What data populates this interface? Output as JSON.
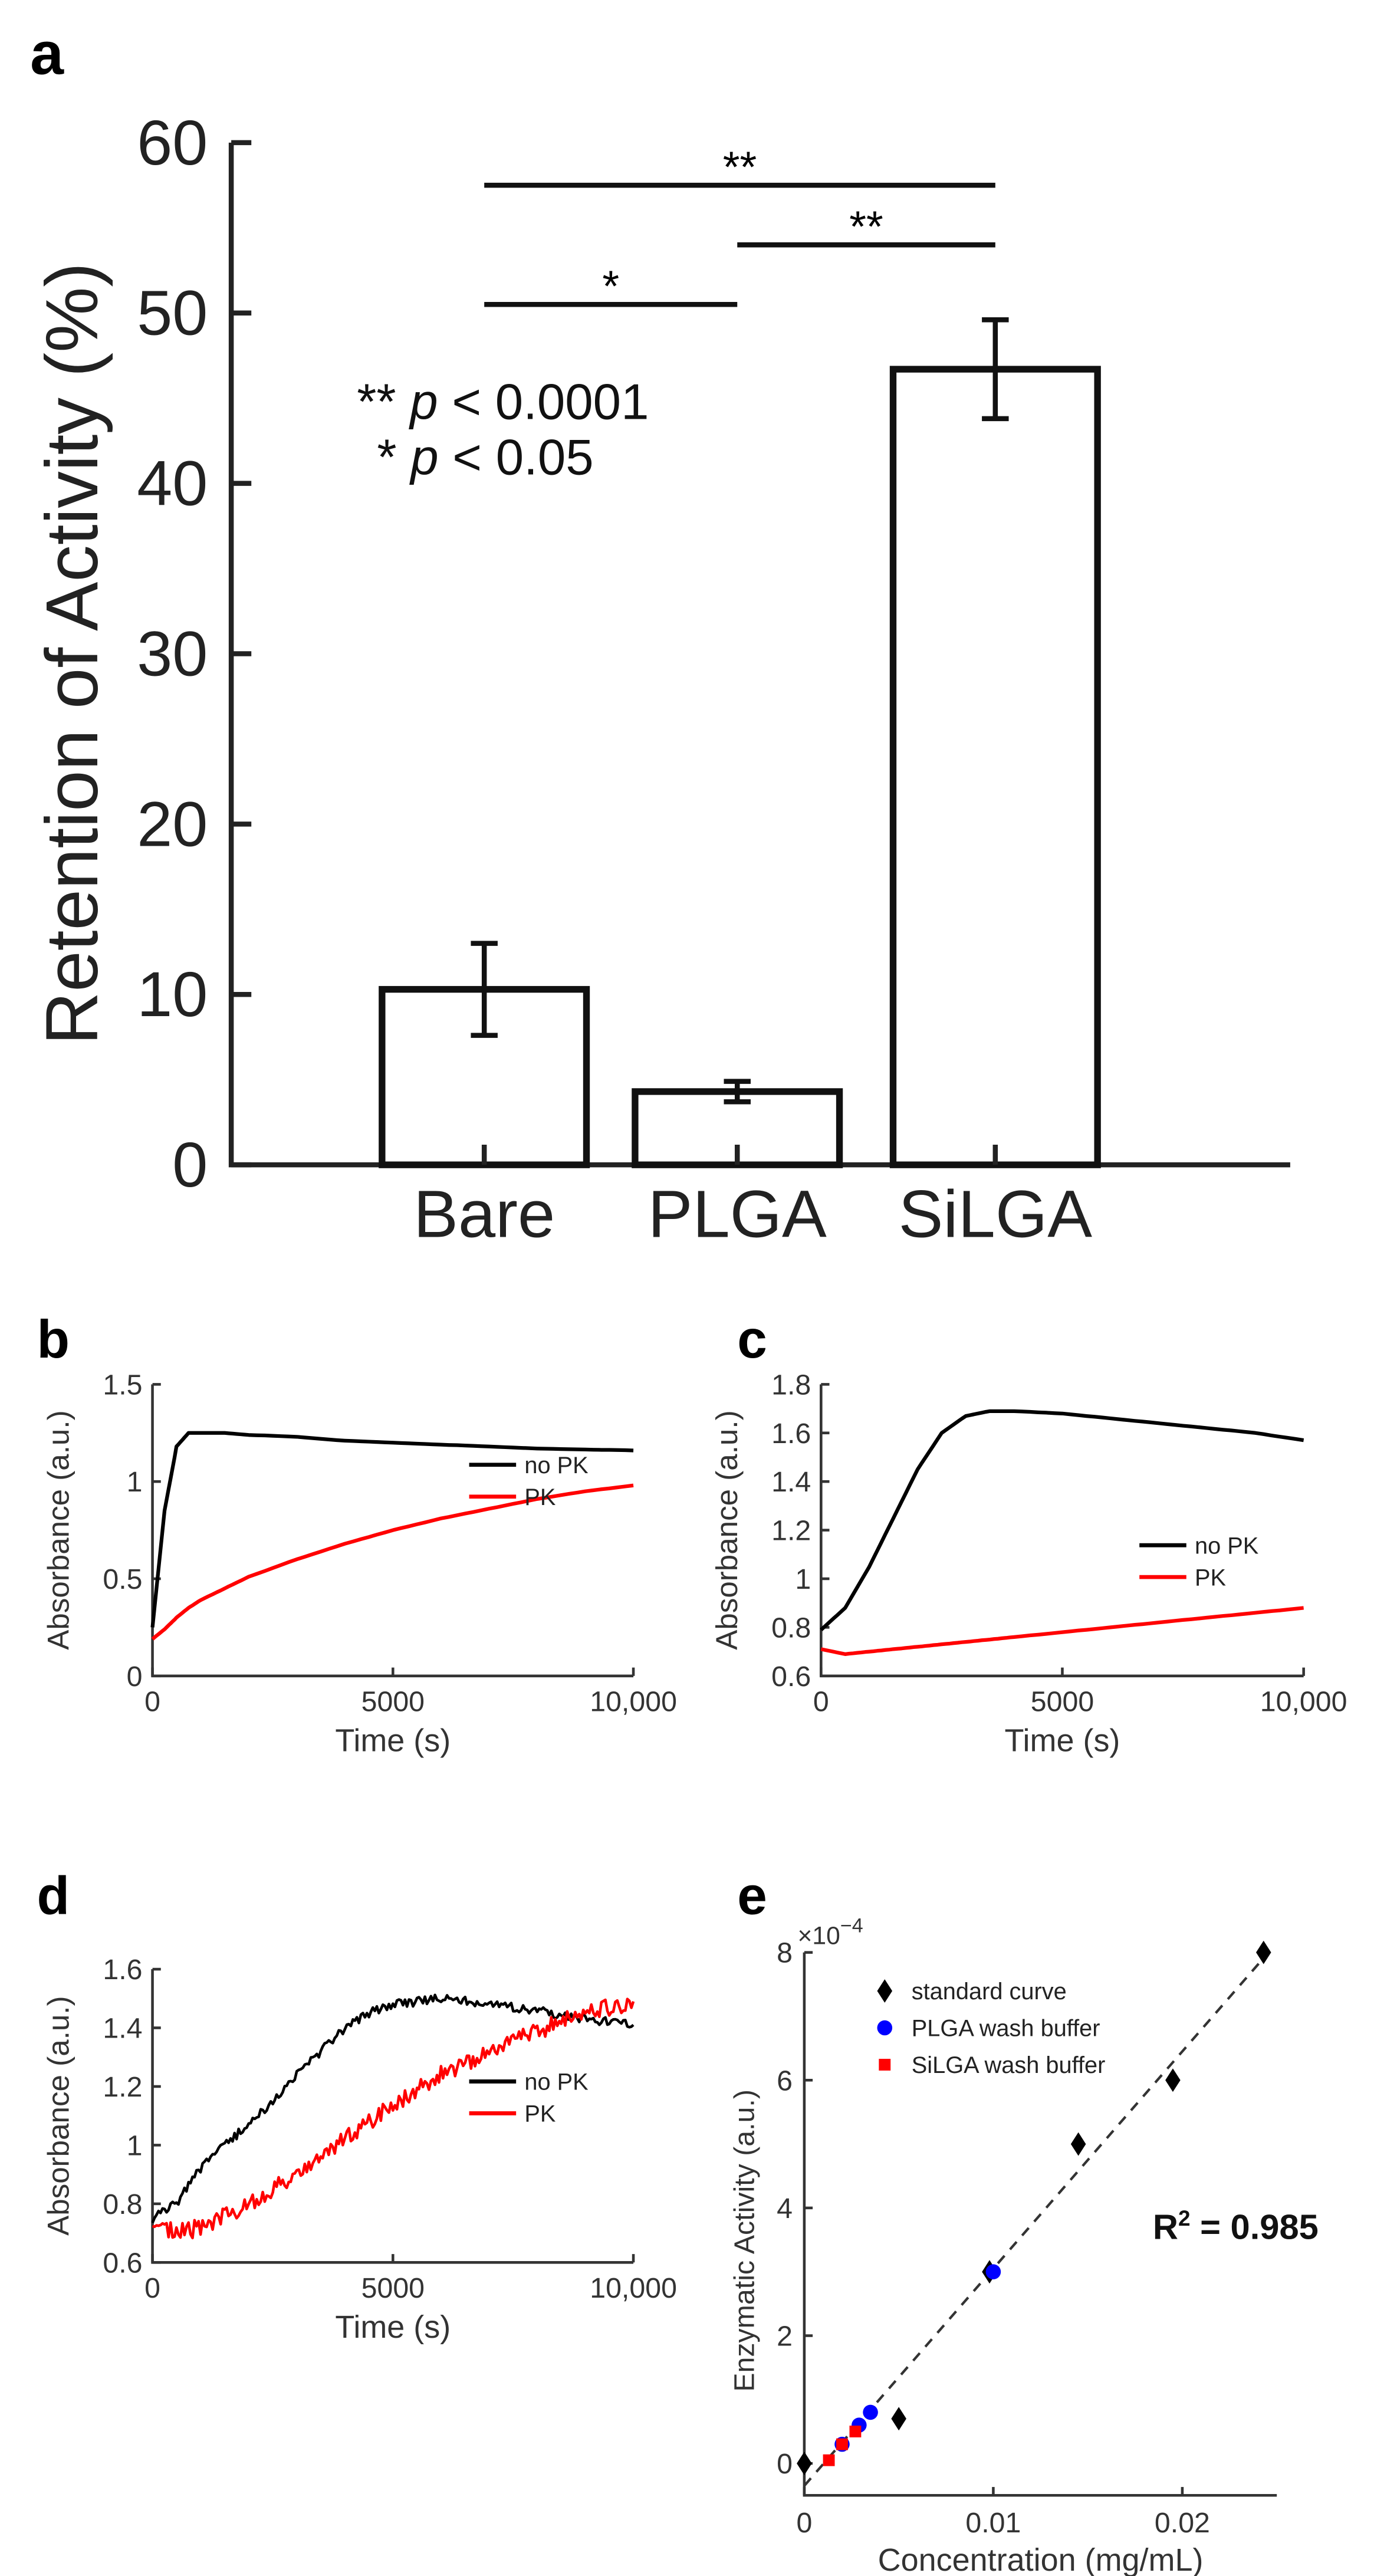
{
  "chart_data": [
    {
      "panel": "a",
      "type": "bar",
      "categories": [
        "Bare",
        "PLGA",
        "SiLGA"
      ],
      "values": [
        10.3,
        4.3,
        46.7
      ],
      "errors": [
        2.7,
        0.6,
        2.9
      ],
      "ylabel": "Retention of Activity (%)",
      "ylim": [
        0,
        60
      ],
      "yticks": [
        "0",
        "10",
        "20",
        "30",
        "40",
        "50",
        "60"
      ],
      "significance": [
        {
          "from": 0,
          "to": 2,
          "y": 57.5,
          "label": "**"
        },
        {
          "from": 1,
          "to": 2,
          "y": 54,
          "label": "**"
        },
        {
          "from": 0,
          "to": 1,
          "y": 50.5,
          "label": "*"
        }
      ],
      "legend_note": [
        "** p < 0.0001",
        "* p < 0.05"
      ]
    },
    {
      "panel": "b",
      "type": "line",
      "xlabel": "Time (s)",
      "ylabel": "Absorbance (a.u.)",
      "xlim": [
        0,
        10000
      ],
      "ylim": [
        0,
        1.5
      ],
      "xticks": [
        0,
        5000,
        10000
      ],
      "xticklabels": [
        "0",
        "5000",
        "10,000"
      ],
      "yticks": [
        0,
        0.5,
        1,
        1.5
      ],
      "yticklabels": [
        "0",
        "0.5",
        "1",
        "1.5"
      ],
      "x": [
        0,
        250,
        500,
        750,
        1000,
        1500,
        2000,
        3000,
        4000,
        5000,
        6000,
        7000,
        8000,
        9000,
        10000
      ],
      "series": [
        {
          "name": "no PK",
          "color": "#000000",
          "values": [
            0.25,
            0.85,
            1.18,
            1.25,
            1.25,
            1.25,
            1.24,
            1.23,
            1.21,
            1.2,
            1.19,
            1.18,
            1.17,
            1.165,
            1.16
          ]
        },
        {
          "name": "PK",
          "color": "#ff0000",
          "values": [
            0.19,
            0.24,
            0.3,
            0.35,
            0.39,
            0.45,
            0.51,
            0.6,
            0.68,
            0.75,
            0.81,
            0.86,
            0.91,
            0.95,
            0.98
          ]
        }
      ]
    },
    {
      "panel": "c",
      "type": "line",
      "xlabel": "Time (s)",
      "ylabel": "Absorbance (a.u.)",
      "xlim": [
        0,
        10000
      ],
      "ylim": [
        0.6,
        1.8
      ],
      "xticks": [
        0,
        5000,
        10000
      ],
      "xticklabels": [
        "0",
        "5000",
        "10,000"
      ],
      "yticks": [
        0.6,
        0.8,
        1,
        1.2,
        1.4,
        1.6,
        1.8
      ],
      "yticklabels": [
        "0.6",
        "0.8",
        "1",
        "1.2",
        "1.4",
        "1.6",
        "1.8"
      ],
      "x": [
        0,
        500,
        1000,
        1500,
        2000,
        2500,
        3000,
        3500,
        4000,
        5000,
        6000,
        7000,
        8000,
        9000,
        10000
      ],
      "series": [
        {
          "name": "no PK",
          "color": "#000000",
          "values": [
            0.79,
            0.88,
            1.05,
            1.25,
            1.45,
            1.6,
            1.67,
            1.69,
            1.69,
            1.68,
            1.66,
            1.64,
            1.62,
            1.6,
            1.57
          ]
        },
        {
          "name": "PK",
          "color": "#ff0000",
          "values": [
            0.71,
            0.69,
            0.7,
            0.71,
            0.72,
            0.73,
            0.74,
            0.75,
            0.76,
            0.78,
            0.8,
            0.82,
            0.84,
            0.86,
            0.88
          ]
        }
      ]
    },
    {
      "panel": "d",
      "type": "line",
      "xlabel": "Time (s)",
      "ylabel": "Absorbance (a.u.)",
      "xlim": [
        0,
        10000
      ],
      "ylim": [
        0.6,
        1.6
      ],
      "xticks": [
        0,
        5000,
        10000
      ],
      "xticklabels": [
        "0",
        "5000",
        "10,000"
      ],
      "yticks": [
        0.6,
        0.8,
        1,
        1.2,
        1.4,
        1.6
      ],
      "yticklabels": [
        "0.6",
        "0.8",
        "1",
        "1.2",
        "1.4",
        "1.6"
      ],
      "x": [
        0,
        500,
        1000,
        1500,
        2000,
        2500,
        3000,
        3500,
        4000,
        4500,
        5000,
        5500,
        6000,
        6500,
        7000,
        7500,
        8000,
        8500,
        9000,
        9500,
        10000
      ],
      "series": [
        {
          "name": "no PK",
          "color": "#000000",
          "values": [
            0.75,
            0.8,
            0.92,
            1.0,
            1.07,
            1.15,
            1.24,
            1.32,
            1.4,
            1.45,
            1.48,
            1.49,
            1.5,
            1.49,
            1.48,
            1.47,
            1.46,
            1.44,
            1.43,
            1.42,
            1.41
          ]
        },
        {
          "name": "PK",
          "color": "#ff0000",
          "values": [
            0.73,
            0.7,
            0.72,
            0.76,
            0.8,
            0.85,
            0.9,
            0.96,
            1.02,
            1.08,
            1.14,
            1.19,
            1.24,
            1.28,
            1.32,
            1.36,
            1.39,
            1.42,
            1.45,
            1.47,
            1.49
          ]
        }
      ]
    },
    {
      "panel": "e",
      "type": "scatter",
      "xlabel": "Concentration (mg/mL)",
      "ylabel": "Enzymatic Activity (a.u.)",
      "y_multiplier": "×10",
      "y_multiplier_exp": "−4",
      "xlim": [
        0,
        0.025
      ],
      "ylim": [
        -0.5,
        8
      ],
      "xticks": [
        0,
        0.01,
        0.02
      ],
      "xticklabels": [
        "0",
        "0.01",
        "0.02"
      ],
      "yticks": [
        0,
        2,
        4,
        6,
        8
      ],
      "yticklabels": [
        "0",
        "2",
        "4",
        "6",
        "8"
      ],
      "series": [
        {
          "name": "standard curve",
          "color": "#000000",
          "marker": "diamond",
          "x": [
            0,
            0.005,
            0.0098,
            0.0145,
            0.0195,
            0.0243
          ],
          "y": [
            0,
            0.7,
            3.0,
            5.0,
            6.0,
            8.0
          ]
        },
        {
          "name": "PLGA wash buffer",
          "color": "#0000ff",
          "marker": "circle",
          "x": [
            0.002,
            0.0029,
            0.0035,
            0.01
          ],
          "y": [
            0.3,
            0.6,
            0.8,
            3.0
          ]
        },
        {
          "name": "SiLGA wash buffer",
          "color": "#ff0000",
          "marker": "square",
          "x": [
            0.0013,
            0.002,
            0.0027
          ],
          "y": [
            0.05,
            0.3,
            0.5
          ]
        }
      ],
      "fit": {
        "slope": 340,
        "intercept": -0.35,
        "x_range": [
          0,
          0.0245
        ]
      },
      "annotation": {
        "text": "R",
        "sup": "2",
        "rest": " = 0.985"
      }
    }
  ],
  "panel_labels": [
    "a",
    "b",
    "c",
    "d",
    "e"
  ]
}
